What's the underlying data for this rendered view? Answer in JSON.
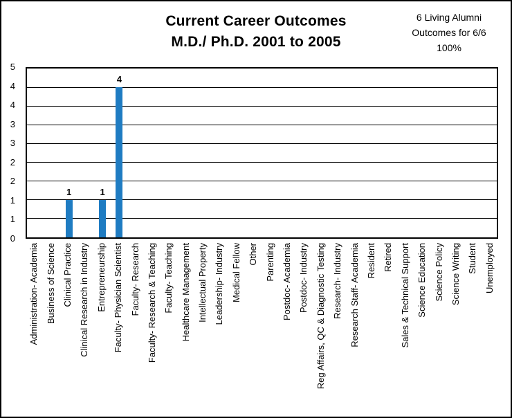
{
  "header": {
    "title_line1": "Current Career Outcomes",
    "title_line2": "M.D./ Ph.D. 2001 to 2005",
    "note_line1": "6 Living Alumni",
    "note_line2": "Outcomes for 6/6",
    "note_line3": "100%"
  },
  "chart_data": {
    "type": "bar",
    "title": "Current Career Outcomes M.D./ Ph.D. 2001 to 2005",
    "annotation": "6 Living Alumni Outcomes for 6/6 100%",
    "categories": [
      "Administration- Academia",
      "Business of Science",
      "Clinical Practice",
      "Clinical Research in Industry",
      "Entrepreneurship",
      "Faculty- Physician Scientist",
      "Faculty- Research",
      "Faculty- Research & Teaching",
      "Faculty- Teaching",
      "Healthcare Management",
      "Intellectual Property",
      "Leadership- Industry",
      "Medical Fellow",
      "Other",
      "Parenting",
      "Postdoc- Academia",
      "Postdoc- Industry",
      "Reg Affairs, QC & Diagnostic Testing",
      "Research- Industry",
      "Research Staff- Academia",
      "Resident",
      "Retired",
      "Sales & Technical Support",
      "Science Education",
      "Science Policy",
      "Science Writing",
      "Student",
      "Unemployed"
    ],
    "values": [
      0,
      0,
      1,
      0,
      1,
      4,
      0,
      0,
      0,
      0,
      0,
      0,
      0,
      0,
      0,
      0,
      0,
      0,
      0,
      0,
      0,
      0,
      0,
      0,
      0,
      0,
      0,
      0
    ],
    "xlabel": "",
    "ylabel": "",
    "ylim": [
      0,
      4.5
    ],
    "y_ticks": [
      {
        "value": 0,
        "label": "0"
      },
      {
        "value": 0.5,
        "label": "1"
      },
      {
        "value": 1,
        "label": "1"
      },
      {
        "value": 1.5,
        "label": "2"
      },
      {
        "value": 2,
        "label": "2"
      },
      {
        "value": 2.5,
        "label": "3"
      },
      {
        "value": 3,
        "label": "3"
      },
      {
        "value": 3.5,
        "label": "4"
      },
      {
        "value": 4,
        "label": "4"
      },
      {
        "value": 4.5,
        "label": "5"
      }
    ],
    "grid": "horizontal",
    "legend": "none",
    "data_labels": true,
    "bar_color": "#1F7CC2",
    "line_color": "#000000"
  }
}
